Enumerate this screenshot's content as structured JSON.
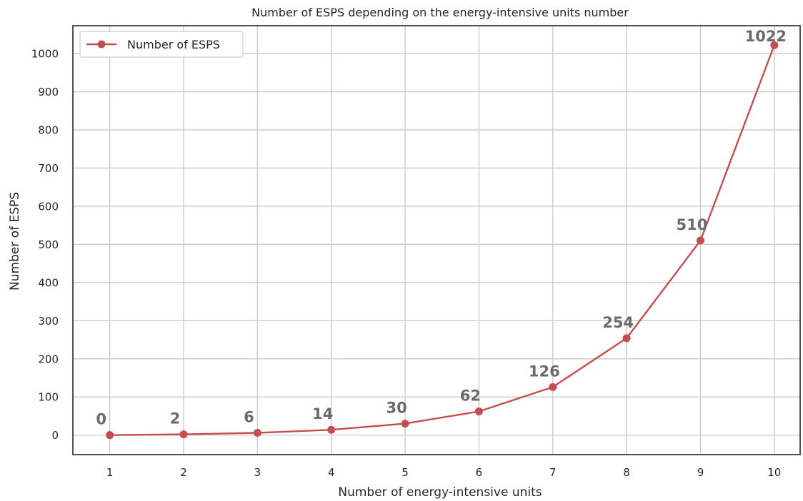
{
  "chart_data": {
    "type": "line",
    "title": "Number of ESPS depending on the energy-intensive units number",
    "xlabel": "Number of energy-intensive units",
    "ylabel": "Number of ESPS",
    "x": [
      1,
      2,
      3,
      4,
      5,
      6,
      7,
      8,
      9,
      10
    ],
    "series": [
      {
        "name": "Number of ESPS",
        "values": [
          0,
          2,
          6,
          14,
          30,
          62,
          126,
          254,
          510,
          1022
        ],
        "color": "#c44e52",
        "marker": "circle"
      }
    ],
    "data_labels": [
      "0",
      "2",
      "6",
      "14",
      "30",
      "62",
      "126",
      "254",
      "510",
      "1022"
    ],
    "x_ticks": [
      "1",
      "2",
      "3",
      "4",
      "5",
      "6",
      "7",
      "8",
      "9",
      "10"
    ],
    "y_ticks": [
      "0",
      "100",
      "200",
      "300",
      "400",
      "500",
      "600",
      "700",
      "800",
      "900",
      "1000"
    ],
    "xlim": [
      0.5,
      10.35
    ],
    "ylim": [
      -51.1,
      1073.1
    ],
    "grid": true,
    "legend_position": "top-left"
  }
}
